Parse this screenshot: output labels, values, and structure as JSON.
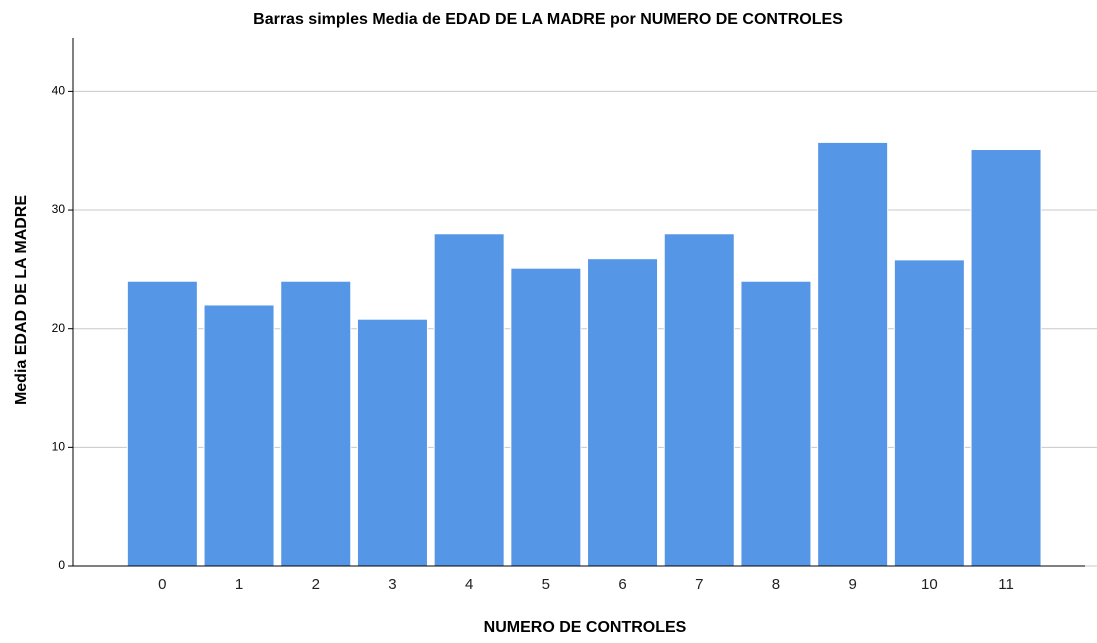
{
  "chart_data": {
    "type": "bar",
    "title": "Barras simples Media de EDAD DE LA MADRE por NUMERO DE CONTROLES",
    "x_label": "NUMERO DE CONTROLES",
    "y_label": "Media EDAD DE LA MADRE",
    "categories": [
      "0",
      "1",
      "2",
      "3",
      "4",
      "5",
      "6",
      "7",
      "8",
      "9",
      "10",
      "11"
    ],
    "values": [
      24,
      22,
      24,
      20.8,
      28,
      25.1,
      25.9,
      28,
      24,
      35.7,
      25.8,
      35.1
    ],
    "color": "#5596e6",
    "ylim": [
      0,
      44.5
    ],
    "yticks": [
      0,
      10,
      20,
      30,
      40
    ],
    "grid": true
  }
}
